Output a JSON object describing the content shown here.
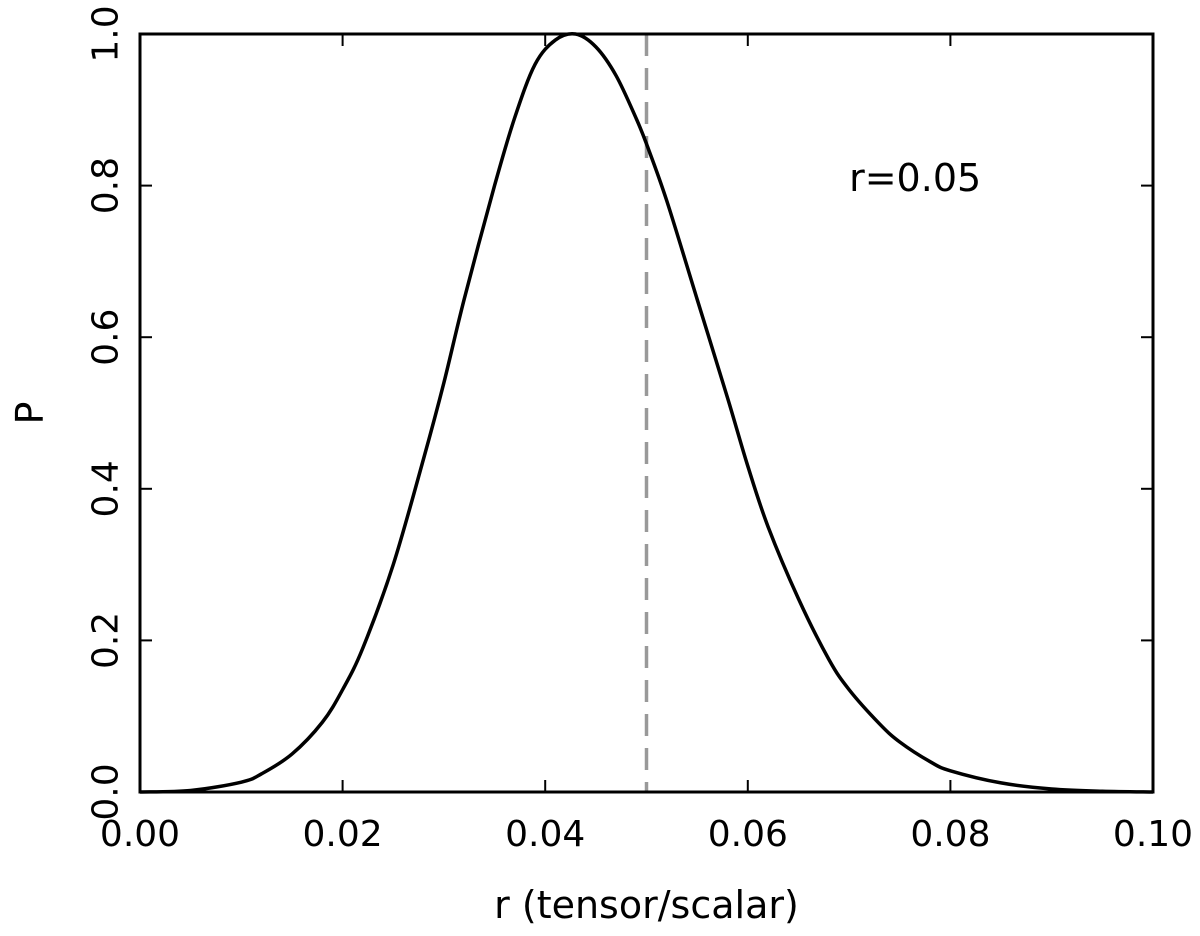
{
  "chart_data": {
    "type": "line",
    "title": "",
    "xlabel": "r (tensor/scalar)",
    "ylabel": "P",
    "xlim": [
      0.0,
      0.1
    ],
    "ylim": [
      0.0,
      1.0
    ],
    "grid": false,
    "x_ticks": [
      0.0,
      0.02,
      0.04,
      0.06,
      0.08,
      0.1
    ],
    "x_tick_labels": [
      "0.00",
      "0.02",
      "0.04",
      "0.06",
      "0.08",
      "0.10"
    ],
    "y_ticks": [
      0.0,
      0.2,
      0.4,
      0.6,
      0.8,
      1.0
    ],
    "y_tick_labels": [
      "0.0",
      "0.2",
      "0.4",
      "0.6",
      "0.8",
      "1.0"
    ],
    "series": [
      {
        "color": "#000000",
        "style": "solid",
        "x": [
          0.0,
          0.005,
          0.01,
          0.012,
          0.015,
          0.018,
          0.02,
          0.022,
          0.025,
          0.028,
          0.03,
          0.032,
          0.035,
          0.037,
          0.039,
          0.041,
          0.043,
          0.045,
          0.047,
          0.049,
          0.05,
          0.052,
          0.055,
          0.058,
          0.06,
          0.062,
          0.065,
          0.068,
          0.07,
          0.073,
          0.075,
          0.078,
          0.08,
          0.085,
          0.09,
          0.095,
          0.1
        ],
        "y": [
          0.0,
          0.002,
          0.013,
          0.024,
          0.05,
          0.092,
          0.135,
          0.19,
          0.3,
          0.44,
          0.54,
          0.65,
          0.8,
          0.89,
          0.96,
          0.992,
          1.0,
          0.983,
          0.945,
          0.888,
          0.855,
          0.78,
          0.65,
          0.52,
          0.43,
          0.35,
          0.255,
          0.175,
          0.135,
          0.09,
          0.066,
          0.04,
          0.028,
          0.012,
          0.004,
          0.001,
          0.0
        ]
      }
    ],
    "reference_lines": [
      {
        "orientation": "vertical",
        "x": 0.05,
        "color": "#999999",
        "style": "dashed"
      }
    ],
    "annotations": [
      {
        "text": "r=0.05",
        "x": 0.07,
        "y": 0.81
      }
    ]
  }
}
